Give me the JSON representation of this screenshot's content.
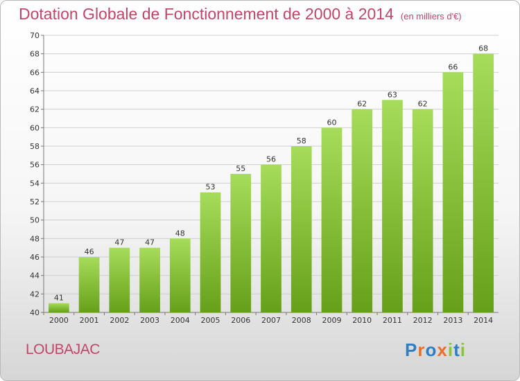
{
  "title": "Dotation Globale de Fonctionnement de 2000 à 2014",
  "subtitle": "(en milliers d'€)",
  "town": "LOUBAJAC",
  "logo": [
    "P",
    "r",
    "o",
    "x",
    "i",
    "t",
    "i"
  ],
  "colors": {
    "bar_light": "#a6dc5a",
    "bar_dark": "#66a01a",
    "title": "#c24569"
  },
  "chart_data": {
    "type": "bar",
    "title": "Dotation Globale de Fonctionnement de 2000 à 2014",
    "subtitle": "(en milliers d'€)",
    "categories": [
      "2000",
      "2001",
      "2002",
      "2003",
      "2004",
      "2005",
      "2006",
      "2007",
      "2008",
      "2009",
      "2010",
      "2011",
      "2012",
      "2013",
      "2014"
    ],
    "values": [
      41,
      46,
      47,
      47,
      48,
      53,
      55,
      56,
      58,
      60,
      62,
      63,
      62,
      66,
      68
    ],
    "ylim": [
      40,
      70
    ],
    "yticks": [
      40,
      42,
      44,
      46,
      48,
      50,
      52,
      54,
      56,
      58,
      60,
      62,
      64,
      66,
      68,
      70
    ],
    "grid": true,
    "legend": "none"
  }
}
